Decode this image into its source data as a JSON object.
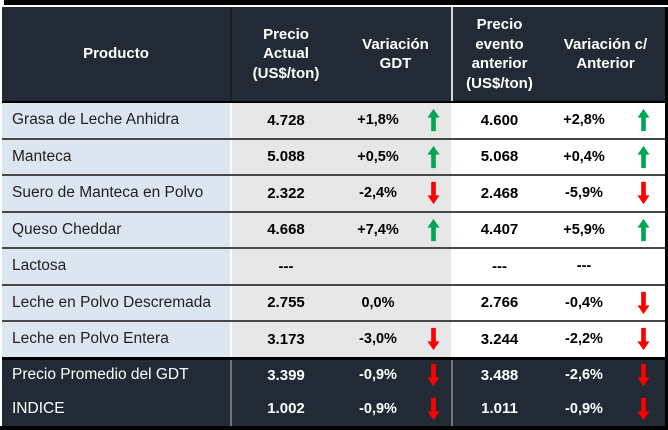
{
  "colors": {
    "header_bg": "#222B35",
    "label_bg": "#DCE6F1",
    "value_bg": "#E8E7E7",
    "white_bg": "#FFFFFF",
    "up_arrow": "#00A651",
    "down_arrow": "#FE0000"
  },
  "table": {
    "headers": [
      {
        "label": "Producto"
      },
      {
        "label": "Precio\nActual\n(US$/ton)"
      },
      {
        "label": "Variación\nGDT"
      },
      {
        "label": "Precio\nevento\nanterior\n(US$/ton)"
      },
      {
        "label": "Variación c/\nAnterior"
      }
    ],
    "rows": [
      {
        "section": "body",
        "product": "Grasa de Leche Anhidra",
        "price_current": "4.728",
        "variation_gdt": "+1,8%",
        "variation_gdt_trend": "up",
        "price_previous": "4.600",
        "variation_previous": "+2,8%",
        "variation_previous_trend": "up"
      },
      {
        "section": "body",
        "product": "Manteca",
        "price_current": "5.088",
        "variation_gdt": "+0,5%",
        "variation_gdt_trend": "up",
        "price_previous": "5.068",
        "variation_previous": "+0,4%",
        "variation_previous_trend": "up"
      },
      {
        "section": "body",
        "product": "Suero de Manteca en Polvo",
        "price_current": "2.322",
        "variation_gdt": "-2,4%",
        "variation_gdt_trend": "down",
        "price_previous": "2.468",
        "variation_previous": "-5,9%",
        "variation_previous_trend": "down"
      },
      {
        "section": "body",
        "product": "Queso Cheddar",
        "price_current": "4.668",
        "variation_gdt": "+7,4%",
        "variation_gdt_trend": "up",
        "price_previous": "4.407",
        "variation_previous": "+5,9%",
        "variation_previous_trend": "up"
      },
      {
        "section": "body",
        "product": "Lactosa",
        "price_current": "---",
        "variation_gdt": "",
        "variation_gdt_trend": "none",
        "price_previous": "---",
        "variation_previous": "---",
        "variation_previous_trend": "none"
      },
      {
        "section": "body",
        "product": "Leche en Polvo Descremada",
        "price_current": "2.755",
        "variation_gdt": "0,0%",
        "variation_gdt_trend": "none",
        "price_previous": "2.766",
        "variation_previous": "-0,4%",
        "variation_previous_trend": "down"
      },
      {
        "section": "body",
        "product": "Leche en Polvo Entera",
        "price_current": "3.173",
        "variation_gdt": "-3,0%",
        "variation_gdt_trend": "down",
        "price_previous": "3.244",
        "variation_previous": "-2,2%",
        "variation_previous_trend": "down"
      },
      {
        "section": "summary",
        "product": "Precio Promedio del GDT",
        "price_current": "3.399",
        "variation_gdt": "-0,9%",
        "variation_gdt_trend": "down",
        "price_previous": "3.488",
        "variation_previous": "-2,6%",
        "variation_previous_trend": "down"
      },
      {
        "section": "summary",
        "product": "INDICE",
        "price_current": "1.002",
        "variation_gdt": "-0,9%",
        "variation_gdt_trend": "down",
        "price_previous": "1.011",
        "variation_previous": "-0,9%",
        "variation_previous_trend": "down"
      }
    ]
  }
}
